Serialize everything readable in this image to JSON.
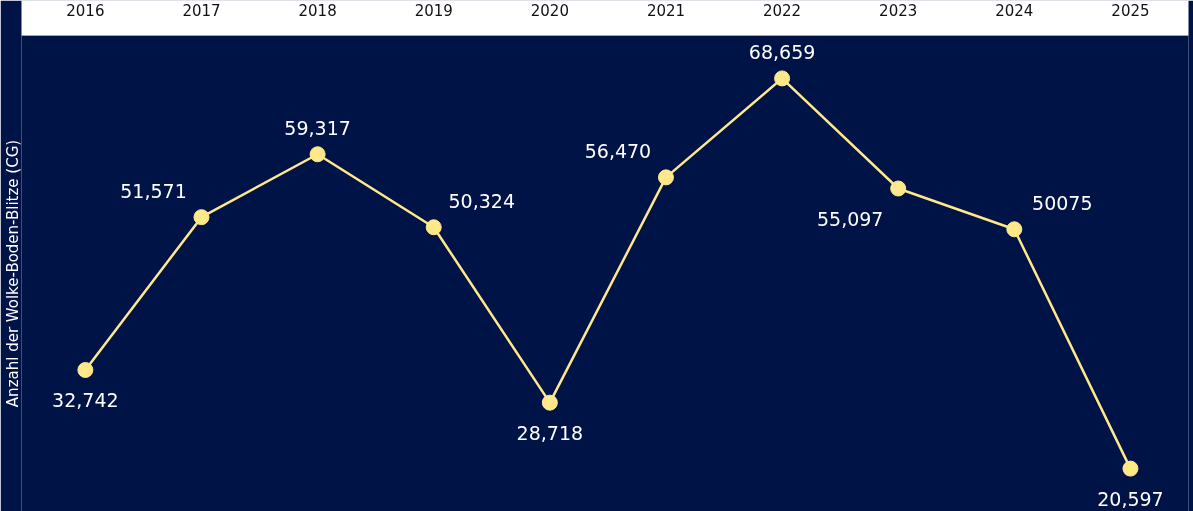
{
  "chart_data": {
    "type": "line",
    "ylabel": "Anzahl der Wolke-Boden-Blitze (CG)",
    "categories": [
      "2016",
      "2017",
      "2018",
      "2019",
      "2020",
      "2021",
      "2022",
      "2023",
      "2024",
      "2025"
    ],
    "series": [
      {
        "color": "#ffe88a",
        "values": [
          32742,
          51571,
          59317,
          50324,
          28718,
          56470,
          68659,
          55097,
          50075,
          20597
        ],
        "value_labels": [
          "32,742",
          "51,571",
          "59,317",
          "50,324",
          "28,718",
          "56,470",
          "68,659",
          "55,097",
          "50075",
          "20,597"
        ]
      }
    ],
    "tick_labels": "x",
    "marker": "circle",
    "line_style": "solid",
    "grid": false
  }
}
